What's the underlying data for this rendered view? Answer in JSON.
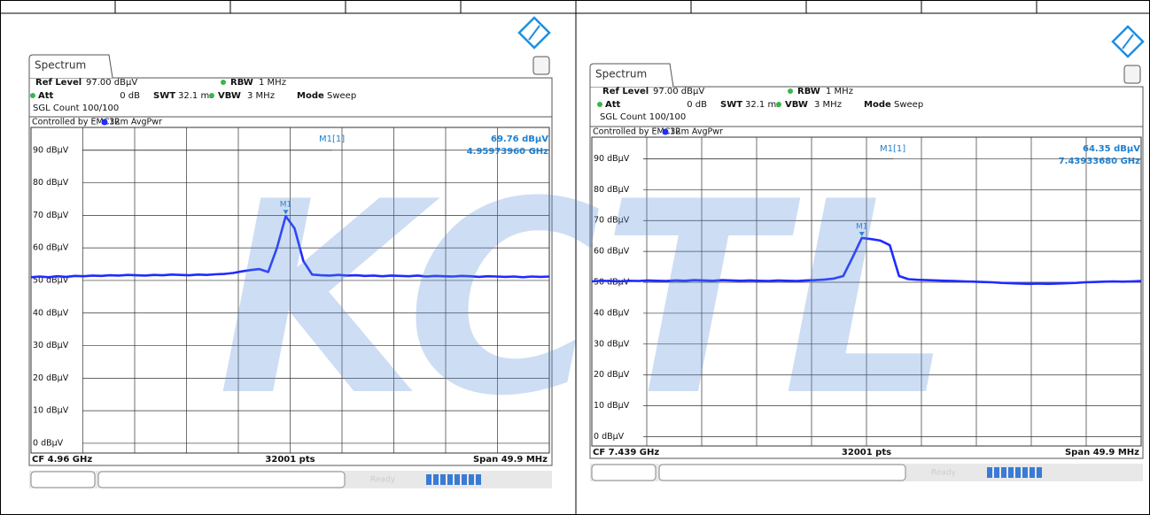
{
  "watermark": "KCTL",
  "chart_data": [
    {
      "type": "line",
      "header": {
        "title": "Spectrum",
        "ref_level_label": "Ref Level",
        "ref_level": "97.00 dBµV",
        "att_label": "Att",
        "att": "0 dB",
        "swt_label": "SWT",
        "swt": "32.1 ms",
        "rbw_label": "RBW",
        "rbw": "1 MHz",
        "vbw_label": "VBW",
        "vbw": "3 MHz",
        "mode_label": "Mode",
        "mode": "Sweep",
        "count": "SGL Count 100/100",
        "controlled": "Controlled by EMC32",
        "trace": "1Rm AvgPwr"
      },
      "marker": {
        "name": "M1[1]",
        "label": "M1",
        "value": 69.76,
        "value_label": "69.76 dBµV",
        "frequency": "4.95973960 GHz"
      },
      "footer": {
        "center_frequency": "CF 4.96 GHz",
        "points": "32001 pts",
        "span": "Span 49.9 MHz",
        "status": "Ready"
      },
      "ylim": [
        -3,
        97
      ],
      "yticks": [
        {
          "value": 0,
          "label": "0 dBµV"
        },
        {
          "value": 10,
          "label": "10 dBµV"
        },
        {
          "value": 20,
          "label": "20 dBµV"
        },
        {
          "value": 30,
          "label": "30 dBµV"
        },
        {
          "value": 40,
          "label": "40 dBµV"
        },
        {
          "value": 50,
          "label": "50 dBµV"
        },
        {
          "value": 60,
          "label": "60 dBµV"
        },
        {
          "value": 70,
          "label": "70 dBµV"
        },
        {
          "value": 80,
          "label": "80 dBµV"
        },
        {
          "value": 90,
          "label": "90 dBµV"
        }
      ],
      "grid": true,
      "color": "#1f2bff",
      "values": [
        51,
        51.2,
        51,
        51.3,
        51.1,
        51.4,
        51.3,
        51.5,
        51.4,
        51.6,
        51.5,
        51.7,
        51.6,
        51.5,
        51.7,
        51.6,
        51.8,
        51.7,
        51.6,
        51.8,
        51.7,
        51.9,
        52,
        52.3,
        52.8,
        53.2,
        53.5,
        52.6,
        60,
        69.76,
        66,
        56,
        51.8,
        51.6,
        51.5,
        51.7,
        51.5,
        51.6,
        51.4,
        51.5,
        51.3,
        51.5,
        51.4,
        51.3,
        51.5,
        51.2,
        51.4,
        51.3,
        51.2,
        51.4,
        51.3,
        51.1,
        51.3,
        51.2,
        51.1,
        51.2,
        51,
        51.2,
        51.1,
        51.2
      ]
    },
    {
      "type": "line",
      "header": {
        "title": "Spectrum",
        "ref_level_label": "Ref Level",
        "ref_level": "97.00 dBµV",
        "att_label": "Att",
        "att": "0 dB",
        "swt_label": "SWT",
        "swt": "32.1 ms",
        "rbw_label": "RBW",
        "rbw": "1 MHz",
        "vbw_label": "VBW",
        "vbw": "3 MHz",
        "mode_label": "Mode",
        "mode": "Sweep",
        "count": "SGL Count 100/100",
        "controlled": "Controlled by EMC32",
        "trace": "1Rm AvgPwr"
      },
      "marker": {
        "name": "M1[1]",
        "label": "M1",
        "value": 64.35,
        "value_label": "64.35 dBµV",
        "frequency": "7.43933680 GHz"
      },
      "footer": {
        "center_frequency": "CF 7.439 GHz",
        "points": "32001 pts",
        "span": "Span 49.9 MHz",
        "status": "Ready"
      },
      "ylim": [
        -3,
        97
      ],
      "yticks": [
        {
          "value": 0,
          "label": "0 dBµV"
        },
        {
          "value": 10,
          "label": "10 dBµV"
        },
        {
          "value": 20,
          "label": "20 dBµV"
        },
        {
          "value": 30,
          "label": "30 dBµV"
        },
        {
          "value": 40,
          "label": "40 dBµV"
        },
        {
          "value": 50,
          "label": "50 dBµV"
        },
        {
          "value": 60,
          "label": "60 dBµV"
        },
        {
          "value": 70,
          "label": "70 dBµV"
        },
        {
          "value": 80,
          "label": "80 dBµV"
        },
        {
          "value": 90,
          "label": "90 dBµV"
        }
      ],
      "grid": true,
      "color": "#1f2bff",
      "values": [
        50.3,
        50.5,
        50.4,
        50.3,
        50.5,
        50.4,
        50.6,
        50.5,
        50.4,
        50.6,
        50.5,
        50.7,
        50.6,
        50.5,
        50.7,
        50.6,
        50.5,
        50.6,
        50.5,
        50.4,
        50.6,
        50.5,
        50.4,
        50.6,
        50.7,
        50.9,
        51.2,
        52,
        58,
        64.35,
        64,
        63.5,
        62,
        52,
        51,
        50.8,
        50.7,
        50.6,
        50.5,
        50.4,
        50.3,
        50.2,
        50.1,
        50,
        49.8,
        49.7,
        49.6,
        49.5,
        49.6,
        49.5,
        49.6,
        49.7,
        49.8,
        50,
        50.1,
        50.2,
        50.3,
        50.2,
        50.3,
        50.4
      ]
    }
  ]
}
